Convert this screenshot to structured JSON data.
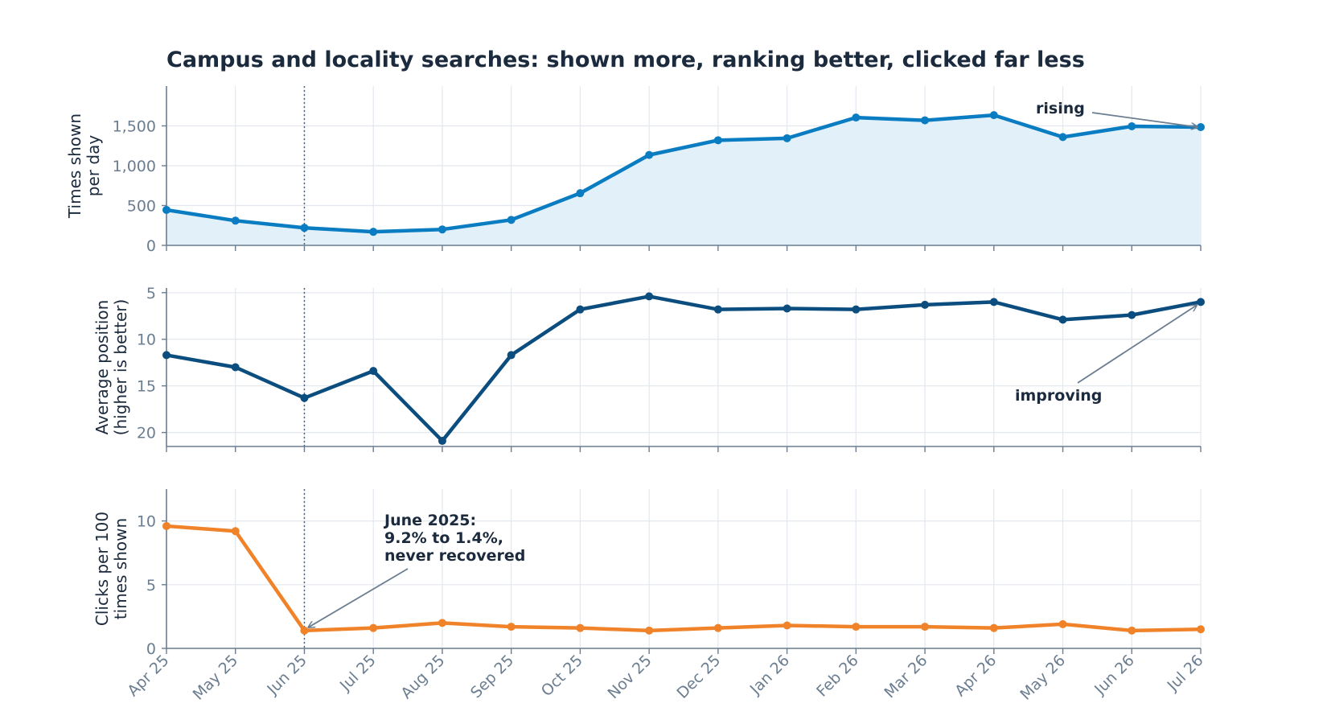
{
  "chart_data": {
    "type": "line",
    "title": "Campus and locality searches: shown more, ranking better, clicked far less",
    "categories": [
      "Apr 25",
      "May 25",
      "Jun 25",
      "Jul 25",
      "Aug 25",
      "Sep 25",
      "Oct 25",
      "Nov 25",
      "Dec 25",
      "Jan 26",
      "Feb 26",
      "Mar 26",
      "Apr 26",
      "May 26",
      "Jun 26",
      "Jul 26"
    ],
    "marker_category": "Jun 25",
    "grid": true,
    "panels": [
      {
        "id": "impressions",
        "ylabel_lines": [
          "Times shown",
          "per day"
        ],
        "ylim": [
          0,
          2000
        ],
        "yticks": [
          0,
          500,
          1000,
          1500
        ],
        "ytick_labels": [
          "0",
          "500",
          "1,000",
          "1,500"
        ],
        "inverted": false,
        "fill": true,
        "color": "#0a7cc1",
        "fill_color": "#e2f0f9",
        "values": [
          445,
          310,
          220,
          170,
          200,
          320,
          655,
          1135,
          1320,
          1345,
          1605,
          1570,
          1635,
          1360,
          1495,
          1485
        ],
        "annotation": {
          "lines": [
            "rising"
          ],
          "target_category": "Jul 26"
        }
      },
      {
        "id": "position",
        "ylabel_lines": [
          "Average position",
          "(higher is better)"
        ],
        "ylim": [
          4.5,
          21.5
        ],
        "yticks": [
          5,
          10,
          15,
          20
        ],
        "ytick_labels": [
          "5",
          "10",
          "15",
          "20"
        ],
        "inverted": true,
        "fill": false,
        "color": "#0b4d7e",
        "values": [
          11.7,
          13.0,
          16.3,
          13.4,
          20.9,
          11.7,
          6.8,
          5.4,
          6.8,
          6.7,
          6.8,
          6.3,
          6.0,
          7.9,
          7.4,
          6.0
        ],
        "annotation": {
          "lines": [
            "improving"
          ],
          "target_category": "Jul 26"
        }
      },
      {
        "id": "ctr",
        "ylabel_lines": [
          "Clicks per 100",
          "times shown"
        ],
        "ylim": [
          0,
          12.5
        ],
        "yticks": [
          0,
          5,
          10
        ],
        "ytick_labels": [
          "0",
          "5",
          "10"
        ],
        "inverted": false,
        "fill": false,
        "color": "#f0832a",
        "values": [
          9.6,
          9.2,
          1.4,
          1.6,
          2.0,
          1.7,
          1.6,
          1.4,
          1.6,
          1.8,
          1.7,
          1.7,
          1.6,
          1.9,
          1.4,
          1.5
        ],
        "annotation": {
          "lines": [
            "June 2025:",
            "9.2% to 1.4%,",
            "never recovered"
          ],
          "target_category": "Jun 25"
        }
      }
    ]
  }
}
